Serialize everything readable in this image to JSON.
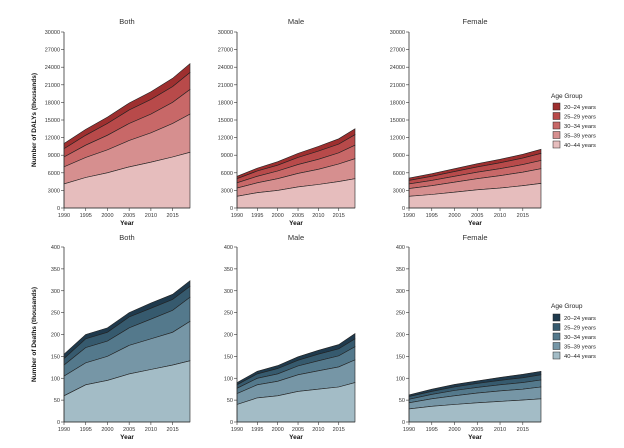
{
  "age_groups": [
    "20–24 years",
    "25–29 years",
    "30–34 years",
    "35–39 years",
    "40–44 years"
  ],
  "rows": [
    {
      "id": "dalys",
      "ylabel": "Number of DALYs (thousands)",
      "legend_title": "Age Group",
      "colors": [
        "#9e2f2f",
        "#b84a4a",
        "#c86868",
        "#d68f8f",
        "#e6bdbd"
      ]
    },
    {
      "id": "deaths",
      "ylabel": "Number of Deaths (thousands)",
      "legend_title": "Age Group",
      "colors": [
        "#1f3a4d",
        "#365a6e",
        "#54798c",
        "#7696a6",
        "#a3bcc6"
      ]
    }
  ],
  "chart_data": [
    {
      "type": "area",
      "title": "Both",
      "xlabel": "Year",
      "ylabel": "Number of DALYs (thousands)",
      "x": [
        1990,
        1995,
        2000,
        2005,
        2010,
        2015,
        2019
      ],
      "xticks": [
        1990,
        1995,
        2000,
        2005,
        2010,
        2015
      ],
      "ylim": [
        0,
        30000
      ],
      "yticks": [
        0,
        3000,
        6000,
        9000,
        12000,
        15000,
        18000,
        21000,
        24000,
        27000,
        30000
      ],
      "stacked": true,
      "legend": "right",
      "series": [
        {
          "name": "40–44 years",
          "values": [
            4100,
            5200,
            6000,
            7000,
            7800,
            8700,
            9500
          ]
        },
        {
          "name": "35–39 years",
          "values": [
            2900,
            3400,
            3900,
            4500,
            5000,
            5700,
            6500
          ]
        },
        {
          "name": "30–34 years",
          "values": [
            1700,
            2100,
            2500,
            2900,
            3200,
            3600,
            4200
          ]
        },
        {
          "name": "25–29 years",
          "values": [
            1400,
            1700,
            2000,
            2300,
            2500,
            2700,
            2900
          ]
        },
        {
          "name": "20–24 years",
          "values": [
            900,
            1000,
            1100,
            1200,
            1300,
            1400,
            1500
          ]
        }
      ]
    },
    {
      "type": "area",
      "title": "Male",
      "xlabel": "Year",
      "ylabel": "Number of DALYs (thousands)",
      "x": [
        1990,
        1995,
        2000,
        2005,
        2010,
        2015,
        2019
      ],
      "xticks": [
        1990,
        1995,
        2000,
        2005,
        2010,
        2015
      ],
      "ylim": [
        0,
        30000
      ],
      "yticks": [
        0,
        3000,
        6000,
        9000,
        12000,
        15000,
        18000,
        21000,
        24000,
        27000,
        30000
      ],
      "stacked": true,
      "legend": "right",
      "series": [
        {
          "name": "40–44 years",
          "values": [
            2000,
            2600,
            3000,
            3600,
            4000,
            4500,
            5000
          ]
        },
        {
          "name": "35–39 years",
          "values": [
            1400,
            1700,
            2000,
            2300,
            2600,
            3000,
            3400
          ]
        },
        {
          "name": "30–34 years",
          "values": [
            900,
            1100,
            1300,
            1500,
            1700,
            1900,
            2300
          ]
        },
        {
          "name": "25–29 years",
          "values": [
            700,
            900,
            1000,
            1200,
            1400,
            1500,
            1800
          ]
        },
        {
          "name": "20–24 years",
          "values": [
            400,
            500,
            600,
            700,
            800,
            900,
            1000
          ]
        }
      ]
    },
    {
      "type": "area",
      "title": "Female",
      "xlabel": "Year",
      "ylabel": "Number of DALYs (thousands)",
      "x": [
        1990,
        1995,
        2000,
        2005,
        2010,
        2015,
        2019
      ],
      "xticks": [
        1990,
        1995,
        2000,
        2005,
        2010,
        2015
      ],
      "ylim": [
        0,
        30000
      ],
      "yticks": [
        0,
        3000,
        6000,
        9000,
        12000,
        15000,
        18000,
        21000,
        24000,
        27000,
        30000
      ],
      "stacked": true,
      "legend": "right",
      "series": [
        {
          "name": "40–44 years",
          "values": [
            2000,
            2300,
            2700,
            3100,
            3400,
            3800,
            4200
          ]
        },
        {
          "name": "35–39 years",
          "values": [
            1300,
            1500,
            1700,
            1900,
            2100,
            2300,
            2500
          ]
        },
        {
          "name": "30–34 years",
          "values": [
            800,
            900,
            1000,
            1100,
            1200,
            1300,
            1400
          ]
        },
        {
          "name": "25–29 years",
          "values": [
            600,
            700,
            800,
            900,
            1000,
            1100,
            1200
          ]
        },
        {
          "name": "20–24 years",
          "values": [
            400,
            450,
            500,
            550,
            600,
            650,
            700
          ]
        }
      ]
    },
    {
      "type": "area",
      "title": "Both",
      "xlabel": "Year",
      "ylabel": "Number of Deaths (thousands)",
      "x": [
        1990,
        1995,
        2000,
        2005,
        2010,
        2015,
        2019
      ],
      "xticks": [
        1990,
        1995,
        2000,
        2005,
        2010,
        2015
      ],
      "ylim": [
        0,
        400
      ],
      "yticks": [
        0,
        50,
        100,
        150,
        200,
        250,
        300,
        350,
        400
      ],
      "stacked": true,
      "legend": "right",
      "series": [
        {
          "name": "40–44 years",
          "values": [
            60,
            85,
            95,
            110,
            120,
            130,
            140
          ]
        },
        {
          "name": "35–39 years",
          "values": [
            45,
            50,
            55,
            65,
            70,
            75,
            90
          ]
        },
        {
          "name": "30–34 years",
          "values": [
            25,
            35,
            35,
            40,
            45,
            50,
            55
          ]
        },
        {
          "name": "25–29 years",
          "values": [
            15,
            20,
            20,
            25,
            25,
            25,
            25
          ]
        },
        {
          "name": "20–24 years",
          "values": [
            10,
            10,
            10,
            10,
            12,
            12,
            13
          ]
        }
      ]
    },
    {
      "type": "area",
      "title": "Male",
      "xlabel": "Year",
      "ylabel": "Number of Deaths (thousands)",
      "x": [
        1990,
        1995,
        2000,
        2005,
        2010,
        2015,
        2019
      ],
      "xticks": [
        1990,
        1995,
        2000,
        2005,
        2010,
        2015
      ],
      "ylim": [
        0,
        400
      ],
      "yticks": [
        0,
        50,
        100,
        150,
        200,
        250,
        300,
        350,
        400
      ],
      "stacked": true,
      "legend": "right",
      "series": [
        {
          "name": "40–44 years",
          "values": [
            40,
            55,
            60,
            70,
            75,
            80,
            90
          ]
        },
        {
          "name": "35–39 years",
          "values": [
            25,
            30,
            33,
            38,
            42,
            46,
            52
          ]
        },
        {
          "name": "30–34 years",
          "values": [
            12,
            15,
            17,
            20,
            23,
            25,
            30
          ]
        },
        {
          "name": "25–29 years",
          "values": [
            8,
            10,
            12,
            13,
            15,
            16,
            18
          ]
        },
        {
          "name": "20–24 years",
          "values": [
            5,
            6,
            7,
            8,
            9,
            10,
            12
          ]
        }
      ]
    },
    {
      "type": "area",
      "title": "Female",
      "xlabel": "Year",
      "ylabel": "Number of Deaths (thousands)",
      "x": [
        1990,
        1995,
        2000,
        2005,
        2010,
        2015,
        2019
      ],
      "xticks": [
        1990,
        1995,
        2000,
        2005,
        2010,
        2015
      ],
      "ylim": [
        0,
        400
      ],
      "yticks": [
        0,
        50,
        100,
        150,
        200,
        250,
        300,
        350,
        400
      ],
      "stacked": true,
      "legend": "right",
      "series": [
        {
          "name": "40–44 years",
          "values": [
            30,
            36,
            40,
            44,
            47,
            50,
            53
          ]
        },
        {
          "name": "35–39 years",
          "values": [
            14,
            17,
            20,
            22,
            24,
            25,
            27
          ]
        },
        {
          "name": "30–34 years",
          "values": [
            8,
            10,
            12,
            13,
            14,
            15,
            16
          ]
        },
        {
          "name": "25–29 years",
          "values": [
            6,
            7,
            8,
            9,
            10,
            11,
            12
          ]
        },
        {
          "name": "20–24 years",
          "values": [
            4,
            5,
            6,
            6,
            7,
            8,
            8
          ]
        }
      ]
    }
  ]
}
